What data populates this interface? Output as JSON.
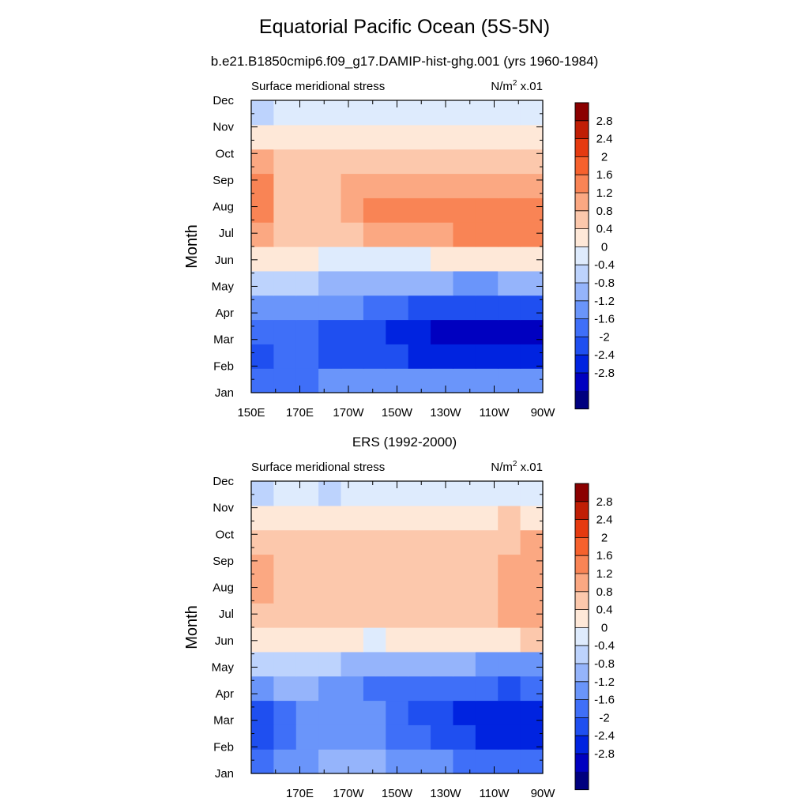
{
  "figure": {
    "title": "Equatorial Pacific Ocean (5S-5N)"
  },
  "colorbar": {
    "levels": [
      -2.8,
      -2.4,
      -2,
      -1.6,
      -1.2,
      -0.8,
      -0.4,
      0,
      0.4,
      0.8,
      1.2,
      1.6,
      2,
      2.4,
      2.8
    ],
    "labels": [
      "2.8",
      "2.4",
      "2",
      "1.6",
      "1.2",
      "0.8",
      "0.4",
      "0",
      "-0.4",
      "-0.8",
      "-1.2",
      "-1.6",
      "-2",
      "-2.4",
      "-2.8"
    ],
    "colors": [
      "#00007f",
      "#0000c0",
      "#0023e0",
      "#1f4ff0",
      "#3f6ff8",
      "#6a95fa",
      "#95b4fb",
      "#bdd3fd",
      "#deebfd",
      "#fee8d8",
      "#fcc8ac",
      "#fba882",
      "#f98455",
      "#f6612d",
      "#e53a10",
      "#c01e05",
      "#8b0000"
    ]
  },
  "chart_data": [
    {
      "type": "heatmap",
      "subtitle": "b.e21.B1850cmip6.f09_g17.DAMIP-hist-ghg.001 (yrs 1960-1984)",
      "left_label": "Surface meridional stress",
      "unit_label": "N/m",
      "unit_sup": "2",
      "unit_scale": " x.01",
      "ylabel": "Month",
      "x_ticks": [
        "150E",
        "170E",
        "170W",
        "150W",
        "130W",
        "110W",
        "90W"
      ],
      "y_ticks": [
        "Jan",
        "Feb",
        "Mar",
        "Apr",
        "May",
        "Jun",
        "Jul",
        "Aug",
        "Sep",
        "Oct",
        "Nov",
        "Dec"
      ],
      "x": [
        150,
        160,
        170,
        180,
        190,
        200,
        210,
        220,
        230,
        240,
        250,
        260,
        270
      ],
      "y": [
        "Jan",
        "Feb",
        "Mar",
        "Apr",
        "May",
        "Jun",
        "Jul",
        "Aug",
        "Sep",
        "Oct",
        "Nov",
        "Dec"
      ],
      "values": [
        [
          -1.5,
          -1.5,
          -1.3,
          -1.1,
          -1.1,
          -1.1,
          -1.1,
          -1.1,
          -1.0,
          -1.0,
          -1.0,
          -1.0,
          -1.1
        ],
        [
          -1.8,
          -1.5,
          -1.6,
          -1.7,
          -1.7,
          -1.9,
          -2.0,
          -2.1,
          -2.2,
          -2.3,
          -2.3,
          -2.3,
          -2.2
        ],
        [
          -1.6,
          -1.5,
          -1.6,
          -1.7,
          -1.8,
          -2.0,
          -2.2,
          -2.4,
          -2.6,
          -2.8,
          -2.7,
          -2.6,
          -2.5
        ],
        [
          -1.2,
          -1.0,
          -1.0,
          -1.1,
          -1.2,
          -1.4,
          -1.6,
          -1.8,
          -1.9,
          -2.0,
          -2.0,
          -2.0,
          -1.9
        ],
        [
          -0.3,
          -0.3,
          -0.4,
          -0.5,
          -0.6,
          -0.6,
          -0.6,
          -0.7,
          -0.8,
          -0.9,
          -0.9,
          -0.8,
          -0.7
        ],
        [
          0.6,
          0.5,
          0.4,
          0.3,
          0.3,
          0.3,
          0.3,
          0.3,
          0.4,
          0.4,
          0.5,
          0.6,
          0.6
        ],
        [
          1.3,
          1.0,
          0.9,
          0.9,
          1.0,
          1.2,
          1.4,
          1.4,
          1.5,
          1.6,
          1.7,
          1.8,
          1.8
        ],
        [
          1.6,
          1.1,
          1.0,
          1.1,
          1.3,
          1.6,
          1.9,
          1.8,
          1.7,
          1.8,
          1.8,
          1.7,
          1.6
        ],
        [
          1.7,
          1.1,
          1.0,
          1.0,
          1.2,
          1.3,
          1.3,
          1.3,
          1.3,
          1.3,
          1.3,
          1.3,
          1.3
        ],
        [
          1.3,
          1.0,
          0.9,
          0.8,
          0.8,
          0.8,
          0.8,
          0.9,
          0.9,
          0.9,
          0.9,
          0.9,
          0.9
        ],
        [
          0.5,
          0.6,
          0.6,
          0.6,
          0.6,
          0.6,
          0.6,
          0.6,
          0.6,
          0.6,
          0.6,
          0.5,
          0.5
        ],
        [
          -0.1,
          0.1,
          0.2,
          0.2,
          0.3,
          0.3,
          0.3,
          0.3,
          0.3,
          0.3,
          0.3,
          0.3,
          0.3
        ]
      ],
      "zlim": [
        -3.2,
        3.2
      ]
    },
    {
      "type": "heatmap",
      "subtitle": "ERS (1992-2000)",
      "left_label": "Surface meridional stress",
      "unit_label": "N/m",
      "unit_sup": "2",
      "unit_scale": " x.01",
      "ylabel": "Month",
      "x_ticks": [
        "",
        "170E",
        "170W",
        "150W",
        "130W",
        "110W",
        "90W"
      ],
      "y_ticks": [
        "Jan",
        "Feb",
        "Mar",
        "Apr",
        "May",
        "Jun",
        "Jul",
        "Aug",
        "Sep",
        "Oct",
        "Nov",
        "Dec"
      ],
      "x": [
        150,
        160,
        170,
        180,
        190,
        200,
        210,
        220,
        230,
        240,
        250,
        260,
        270
      ],
      "y": [
        "Jan",
        "Feb",
        "Mar",
        "Apr",
        "May",
        "Jun",
        "Jul",
        "Aug",
        "Sep",
        "Oct",
        "Nov",
        "Dec"
      ],
      "values": [
        [
          -1.3,
          -1.1,
          -0.9,
          -0.8,
          -0.7,
          -0.8,
          -0.9,
          -1.0,
          -1.2,
          -1.3,
          -1.4,
          -1.5,
          -1.6
        ],
        [
          -1.8,
          -1.5,
          -1.2,
          -1.1,
          -1.0,
          -1.1,
          -1.3,
          -1.6,
          -1.8,
          -2.0,
          -2.1,
          -2.1,
          -2.2
        ],
        [
          -1.9,
          -1.5,
          -1.1,
          -1.0,
          -0.9,
          -1.0,
          -1.4,
          -1.7,
          -2.0,
          -2.2,
          -2.3,
          -2.3,
          -2.2
        ],
        [
          -0.9,
          -0.8,
          -0.8,
          -0.9,
          -1.0,
          -1.3,
          -1.6,
          -1.6,
          -1.5,
          -1.5,
          -1.6,
          -1.7,
          -1.6
        ],
        [
          -0.2,
          -0.3,
          -0.4,
          -0.4,
          -0.5,
          -0.6,
          -0.6,
          -0.5,
          -0.7,
          -0.8,
          -1.0,
          -1.0,
          -0.9
        ],
        [
          0.6,
          0.5,
          0.4,
          0.4,
          0.4,
          0.3,
          0.4,
          0.4,
          0.4,
          0.4,
          0.5,
          0.6,
          0.9
        ],
        [
          1.0,
          0.9,
          0.8,
          0.8,
          0.8,
          0.9,
          1.0,
          1.0,
          1.0,
          1.0,
          1.1,
          1.3,
          1.4
        ],
        [
          1.2,
          1.0,
          0.9,
          0.9,
          1.0,
          1.1,
          1.1,
          1.1,
          1.1,
          1.0,
          1.1,
          1.3,
          1.5
        ],
        [
          1.5,
          1.0,
          0.9,
          1.0,
          1.1,
          1.1,
          1.1,
          1.1,
          1.0,
          0.9,
          1.0,
          1.2,
          1.5
        ],
        [
          1.0,
          0.9,
          0.9,
          0.9,
          1.0,
          1.0,
          1.0,
          0.9,
          0.9,
          0.8,
          0.8,
          1.0,
          1.2
        ],
        [
          0.5,
          0.5,
          0.6,
          0.6,
          0.5,
          0.5,
          0.5,
          0.5,
          0.5,
          0.6,
          0.7,
          0.8,
          0.6
        ],
        [
          -0.1,
          0.1,
          0.1,
          -0.1,
          0.0,
          0.1,
          0.2,
          0.2,
          0.2,
          0.2,
          0.3,
          0.3,
          0.2
        ]
      ],
      "zlim": [
        -3.2,
        3.2
      ]
    }
  ]
}
